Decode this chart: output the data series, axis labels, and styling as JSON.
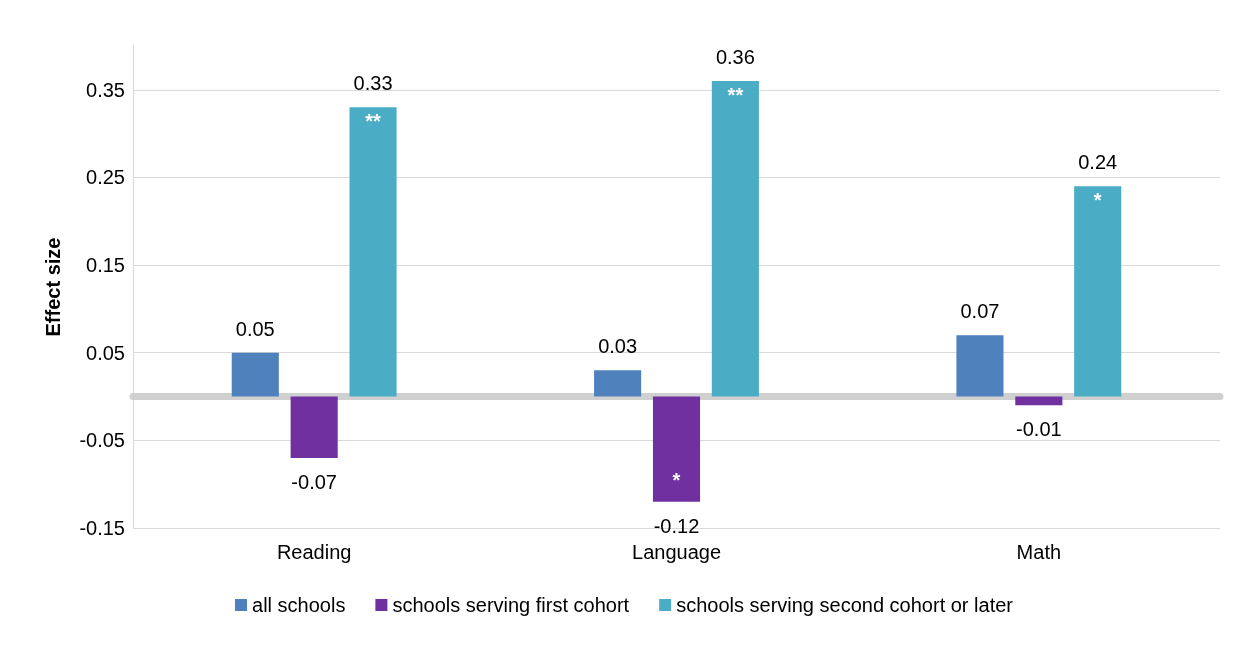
{
  "chart_data": {
    "type": "bar",
    "ylabel": "Effect size",
    "categories": [
      "Reading",
      "Language",
      "Math"
    ],
    "series": [
      {
        "name": "all schools",
        "color": "#4f81bd",
        "values": [
          0.05,
          0.03,
          0.07
        ]
      },
      {
        "name": "schools serving first cohort",
        "color": "#7030a0",
        "values": [
          -0.07,
          -0.12,
          -0.01
        ]
      },
      {
        "name": "schools serving second cohort or later",
        "color": "#4bacc6",
        "values": [
          0.33,
          0.36,
          0.24
        ]
      }
    ],
    "ylim": [
      -0.15,
      0.4
    ],
    "yticks": [
      -0.15,
      -0.05,
      0.05,
      0.15,
      0.25,
      0.35
    ],
    "grid": "y",
    "legend": "bottom",
    "data_labels": true,
    "annotations": [
      {
        "text": "**",
        "y": 0.36
      },
      {
        "text": "**",
        "y": 0.33
      },
      {
        "text": "*",
        "x": "Language",
        "y": -0.12
      },
      {
        "text": "*",
        "y": 0.24
      }
    ]
  }
}
